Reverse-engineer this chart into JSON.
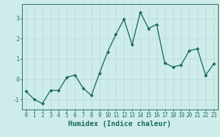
{
  "x": [
    0,
    1,
    2,
    3,
    4,
    5,
    6,
    7,
    8,
    9,
    10,
    11,
    12,
    13,
    14,
    15,
    16,
    17,
    18,
    19,
    20,
    21,
    22,
    23
  ],
  "y": [
    -0.6,
    -1.0,
    -1.2,
    -0.55,
    -0.55,
    0.1,
    0.2,
    -0.45,
    -0.8,
    0.3,
    1.35,
    2.2,
    2.95,
    1.7,
    3.3,
    2.5,
    2.7,
    0.8,
    0.6,
    0.7,
    1.4,
    1.5,
    0.2,
    0.75
  ],
  "line_color": "#1a6b5e",
  "marker": "D",
  "marker_size": 2.2,
  "linewidth": 1.0,
  "xlabel": "Humidex (Indice chaleur)",
  "ylim": [
    -1.5,
    3.7
  ],
  "xlim": [
    -0.5,
    23.5
  ],
  "yticks": [
    -1,
    0,
    1,
    2,
    3
  ],
  "xticks": [
    0,
    1,
    2,
    3,
    4,
    5,
    6,
    7,
    8,
    9,
    10,
    11,
    12,
    13,
    14,
    15,
    16,
    17,
    18,
    19,
    20,
    21,
    22,
    23
  ],
  "background_color": "#ceecea",
  "grid_color": "#b8dbd9",
  "tick_fontsize": 5.5,
  "xlabel_fontsize": 7.5
}
